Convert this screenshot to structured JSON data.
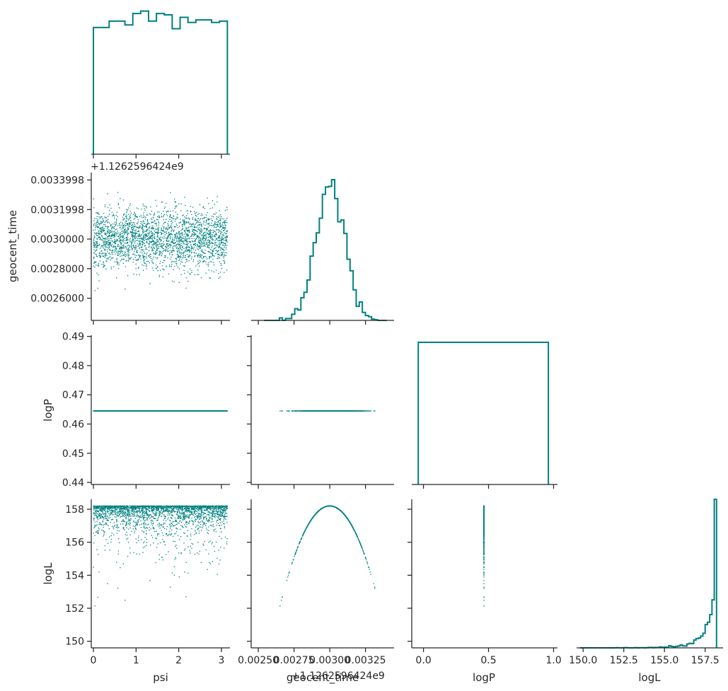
{
  "chart_data": {
    "type": "scatter",
    "variables": [
      "psi",
      "geocent_time",
      "logP",
      "logL"
    ],
    "color": "#008080",
    "offset_text": "+1.1262596424e9",
    "x_ticks": {
      "psi": [
        "0",
        "1",
        "2",
        "3"
      ],
      "geocent_time": [
        "0.00250",
        "0.00275",
        "0.00300",
        "0.00325"
      ],
      "logP": [
        "0.0",
        "0.5",
        "1.0"
      ],
      "logL": [
        "150.0",
        "152.5",
        "155.0",
        "157.5"
      ]
    },
    "y_ticks": {
      "geocent_time": [
        "0.0033998",
        "0.0031998",
        "0.0030000",
        "0.0028000",
        "0.0026000"
      ],
      "logP": [
        "0.49",
        "0.48",
        "0.47",
        "0.46",
        "0.45",
        "0.44"
      ],
      "logL": [
        "158",
        "156",
        "154",
        "152",
        "150"
      ]
    },
    "ranges": {
      "psi": [
        -0.05,
        3.2
      ],
      "geocent_time": [
        0.00245,
        0.00345
      ],
      "logP": [
        0.4393,
        0.4904
      ],
      "logL": [
        149.6,
        158.6
      ]
    },
    "constants": {
      "logP": 0.4645
    },
    "posterior": {
      "geocent_time_mean": 0.003,
      "geocent_time_sd": 0.0001,
      "logL_max": 158.2,
      "geocent_time_peak": 0.003
    },
    "psi_histogram_counts": [
      100,
      100,
      105,
      105,
      102,
      111,
      113,
      105,
      111,
      110,
      99,
      108,
      104,
      106,
      106,
      104,
      105
    ],
    "logP_histogram": {
      "bin": [
        -0.04,
        0.96
      ],
      "height": 1
    },
    "grid": false
  }
}
